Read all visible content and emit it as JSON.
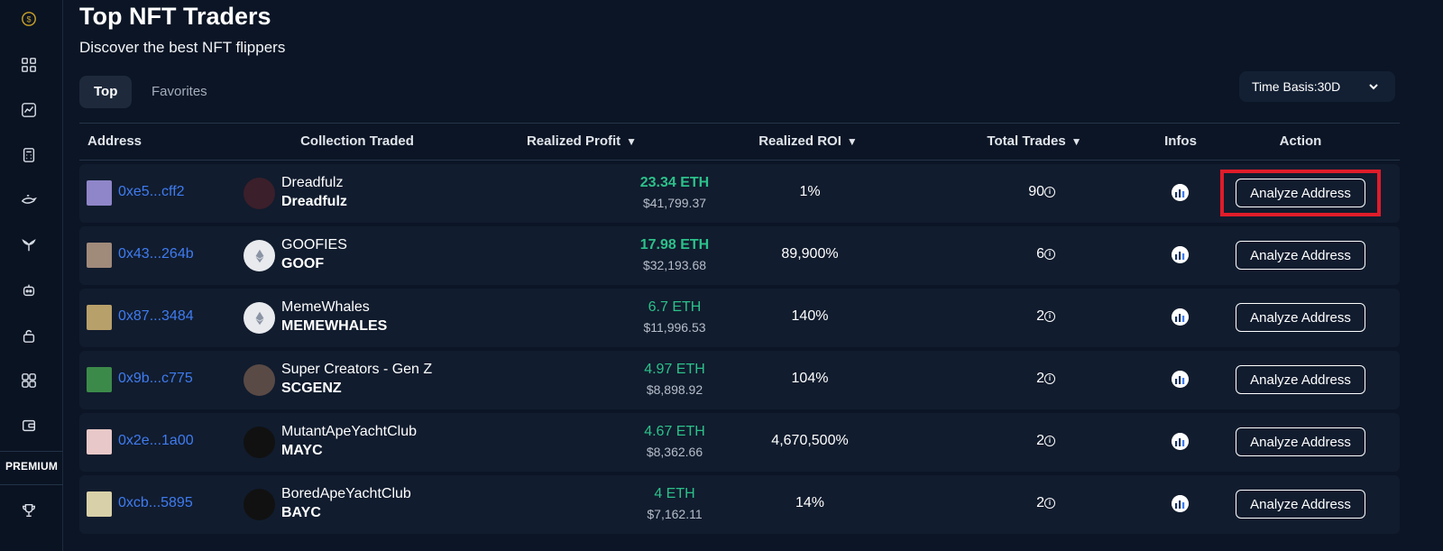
{
  "sidebar": {
    "icons": [
      "dollar-coin-icon",
      "dashboard-grid-icon",
      "trend-chart-icon",
      "calculator-icon",
      "whale-icon",
      "whale-tail-icon",
      "robot-icon",
      "lock-icon",
      "apps-grid-icon",
      "wallet-icon",
      "trophy-icon"
    ],
    "premium_label": "PREMIUM"
  },
  "header": {
    "title": "Top NFT Traders",
    "subtitle": "Discover the best NFT flippers"
  },
  "tabs": [
    {
      "label": "Top",
      "active": true
    },
    {
      "label": "Favorites",
      "active": false
    }
  ],
  "time_basis": {
    "label": "Time Basis:30D"
  },
  "table": {
    "columns": {
      "address": "Address",
      "collection": "Collection Traded",
      "profit": "Realized Profit",
      "roi": "Realized ROI",
      "trades": "Total Trades",
      "infos": "Infos",
      "action": "Action"
    },
    "sort_arrow": "▼",
    "rows": [
      {
        "address": "0xe5...cff2",
        "collection_name": "Dreadfulz",
        "collection_symbol": "Dreadfulz",
        "profit_eth": "23.34 ETH",
        "profit_usd": "$41,799.37",
        "roi": "1%",
        "trades": "90",
        "action": "Analyze Address",
        "avatar_color": "#8f86c9",
        "coll_color": "#3b1f2a"
      },
      {
        "address": "0x43...264b",
        "collection_name": "GOOFIES",
        "collection_symbol": "GOOF",
        "profit_eth": "17.98 ETH",
        "profit_usd": "$32,193.68",
        "roi": "89,900%",
        "trades": "6",
        "action": "Analyze Address",
        "avatar_color": "#a08a7a",
        "coll_color": "#e8eaee"
      },
      {
        "address": "0x87...3484",
        "collection_name": "MemeWhales",
        "collection_symbol": "MEMEWHALES",
        "profit_eth": "6.7 ETH",
        "profit_usd": "$11,996.53",
        "roi": "140%",
        "trades": "2",
        "action": "Analyze Address",
        "avatar_color": "#b8a06a",
        "coll_color": "#e8eaee"
      },
      {
        "address": "0x9b...c775",
        "collection_name": "Super Creators - Gen Z",
        "collection_symbol": "SCGENZ",
        "profit_eth": "4.97 ETH",
        "profit_usd": "$8,898.92",
        "roi": "104%",
        "trades": "2",
        "action": "Analyze Address",
        "avatar_color": "#3c8a4a",
        "coll_color": "#5a4a45"
      },
      {
        "address": "0x2e...1a00",
        "collection_name": "MutantApeYachtClub",
        "collection_symbol": "MAYC",
        "profit_eth": "4.67 ETH",
        "profit_usd": "$8,362.66",
        "roi": "4,670,500%",
        "trades": "2",
        "action": "Analyze Address",
        "avatar_color": "#e8c8c8",
        "coll_color": "#111111"
      },
      {
        "address": "0xcb...5895",
        "collection_name": "BoredApeYachtClub",
        "collection_symbol": "BAYC",
        "profit_eth": "4 ETH",
        "profit_usd": "$7,162.11",
        "roi": "14%",
        "trades": "2",
        "action": "Analyze Address",
        "avatar_color": "#d8d0a8",
        "coll_color": "#111111"
      }
    ]
  },
  "colors": {
    "background": "#0b1525",
    "row_background": "#111c2e",
    "profit_green": "#2cc18a",
    "address_blue": "#3f7cf0",
    "highlight_red": "#e01c2a"
  }
}
